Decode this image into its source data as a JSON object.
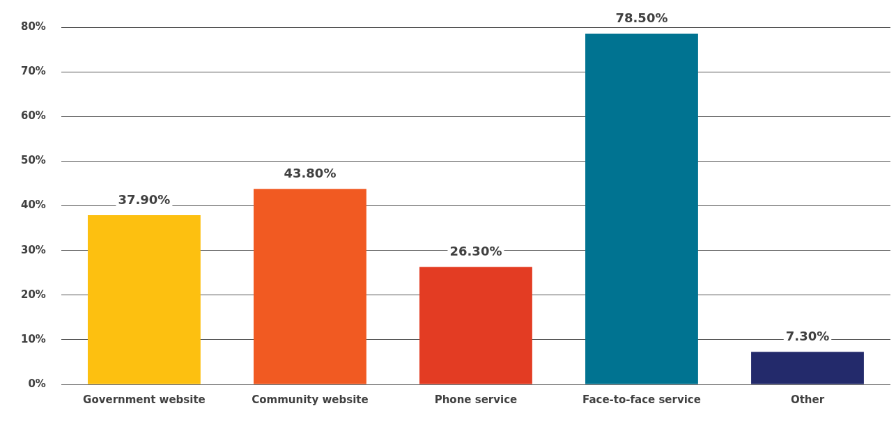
{
  "chart_data": {
    "type": "bar",
    "categories": [
      "Government website",
      "Community website",
      "Phone service",
      "Face-to-face service",
      "Other"
    ],
    "values": [
      37.9,
      43.8,
      26.3,
      78.5,
      7.3
    ],
    "colors": [
      "#fdc010",
      "#f15a22",
      "#e33c23",
      "#007391",
      "#232a6b"
    ],
    "value_labels": [
      "37.90%",
      "43.80%",
      "26.30%",
      "78.50%",
      "7.30%"
    ],
    "ylim": [
      0,
      80
    ],
    "yticks": [
      {
        "value": 0,
        "label": "0%"
      },
      {
        "value": 10,
        "label": "10%"
      },
      {
        "value": 20,
        "label": "20%"
      },
      {
        "value": 30,
        "label": "30%"
      },
      {
        "value": 40,
        "label": "40%"
      },
      {
        "value": 50,
        "label": "50%"
      },
      {
        "value": 60,
        "label": "60%"
      },
      {
        "value": 70,
        "label": "70%"
      },
      {
        "value": 80,
        "label": "80%"
      }
    ],
    "grid": "y"
  }
}
